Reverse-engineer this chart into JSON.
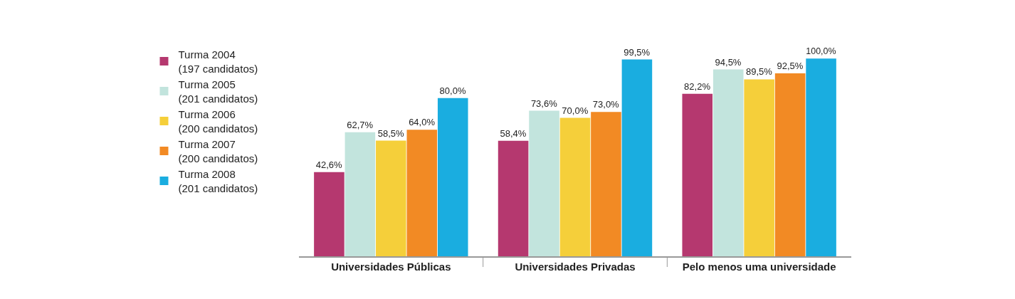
{
  "chart_data": {
    "type": "bar",
    "categories": [
      "Universidades Públicas",
      "Universidades Privadas",
      "Pelo menos uma universidade"
    ],
    "legend": "top left",
    "data_labels": false,
    "series": [
      {
        "name": "Turma 2004\n(197 candidatos)",
        "color": "#b5386f",
        "values": [
          42.6,
          58.4,
          82.2
        ],
        "value_labels": [
          "42,6%",
          "58,4%",
          "82,2%"
        ]
      },
      {
        "name": "Turma 2005\n(201 candidatos)",
        "color": "#c2e4dd",
        "values": [
          62.7,
          73.6,
          94.5
        ],
        "value_labels": [
          "62,7%",
          "73,6%",
          "94,5%"
        ]
      },
      {
        "name": "Turma 2006\n(200 candidatos)",
        "color": "#f5cf3a",
        "values": [
          58.5,
          70.0,
          89.5
        ],
        "value_labels": [
          "58,5%",
          "70,0%",
          "89,5%"
        ]
      },
      {
        "name": "Turma 2007\n(200 candidatos)",
        "color": "#f28a24",
        "values": [
          64.0,
          73.0,
          92.5
        ],
        "value_labels": [
          "64,0%",
          "73,0%",
          "92,5%"
        ]
      },
      {
        "name": "Turma 2008\n(201 candidatos)",
        "color": "#1aade0",
        "values": [
          80.0,
          99.5,
          100.0
        ],
        "value_labels": [
          "80,0%",
          "99,5%",
          "100,0%"
        ]
      }
    ]
  }
}
